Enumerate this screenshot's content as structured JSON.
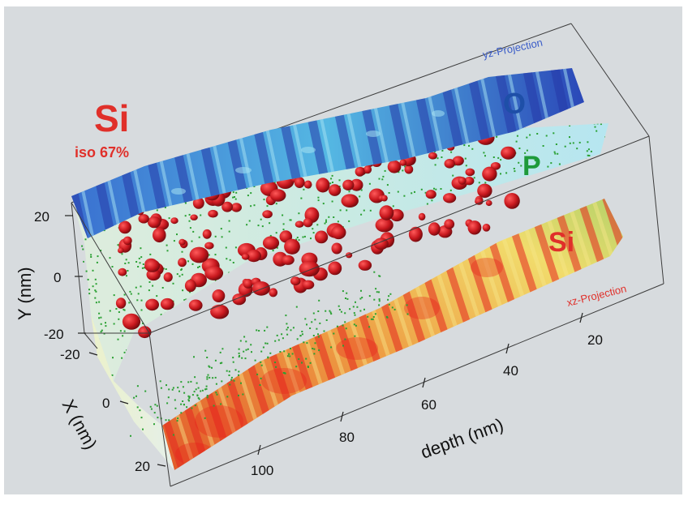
{
  "labels": {
    "si_title": "Si",
    "iso": "iso 67%",
    "yz_projection": "yz-Projection",
    "o_label": "O",
    "p_label": "P",
    "si_label": "Si",
    "xz_projection": "xz-Projection"
  },
  "axes": {
    "y": {
      "label": "Y (nm)",
      "ticks": [
        "20",
        "0",
        "-20"
      ]
    },
    "x": {
      "label": "X (nm)",
      "ticks": [
        "-20",
        "0",
        "20"
      ]
    },
    "depth": {
      "label": "depth (nm)",
      "ticks": [
        "20",
        "40",
        "60",
        "80",
        "100"
      ]
    }
  },
  "colors": {
    "background": "#d7dbde",
    "yz_dark": "#2a44b8",
    "yz_light": "#5ec3e6",
    "xz_red": "#e8302a",
    "xz_yellow": "#f2e070",
    "xz_green": "#b9d46a",
    "p_dots": "#2aa032",
    "si_blobs": "#c8181e",
    "o_text": "#1e4fa8",
    "p_text": "#1e9a3a",
    "si_text": "#e0302a",
    "yz_text": "#3a5cc8",
    "xz_text": "#e0302a"
  }
}
